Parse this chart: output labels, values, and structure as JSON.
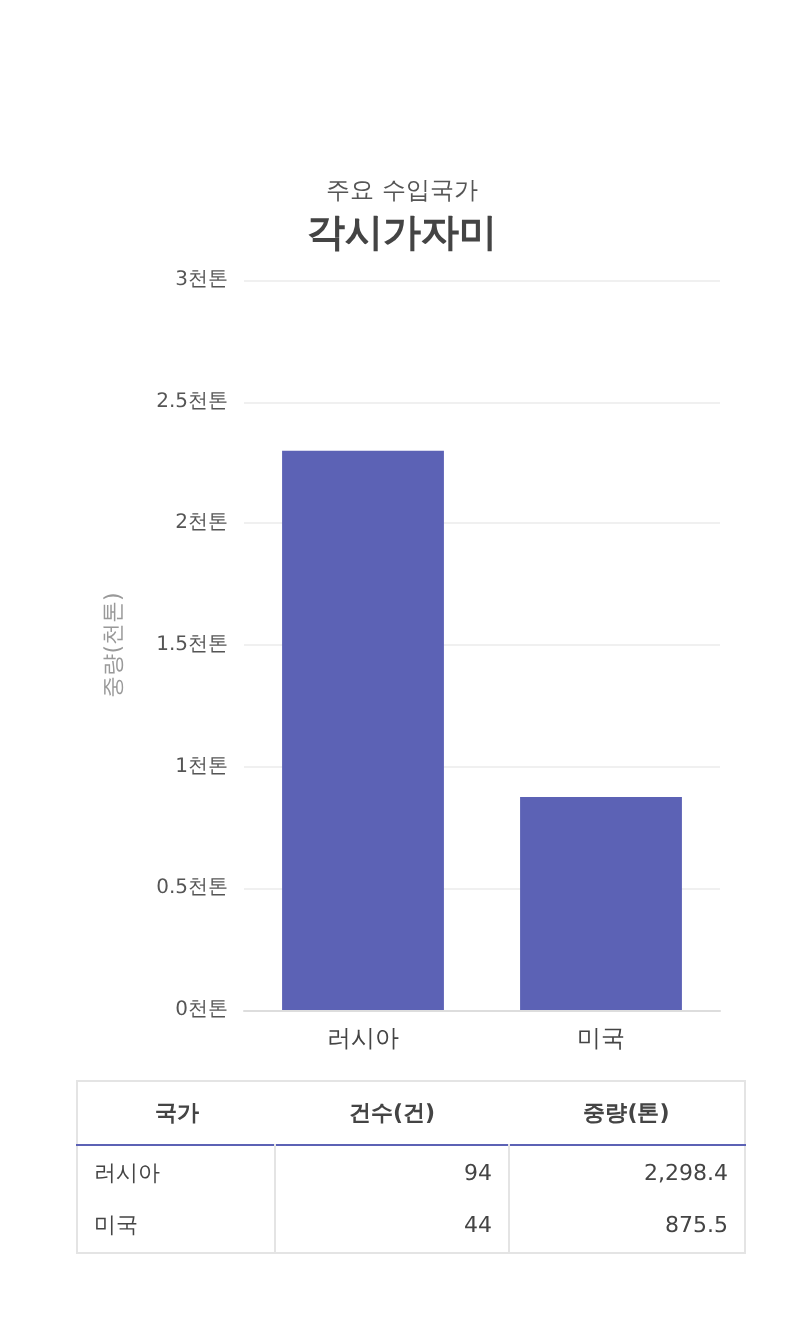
{
  "chart_data": [
    {
      "type": "bar",
      "subtitle": "주요 수입국가",
      "title": "각시가자미",
      "ylabel": "중량(천톤)",
      "categories": [
        "러시아",
        "미국"
      ],
      "values": [
        2.2984,
        0.8755
      ],
      "color": "#5c62b5",
      "ylim": [
        0,
        3
      ],
      "yticks": [
        {
          "value": 0,
          "label": "0천톤"
        },
        {
          "value": 0.5,
          "label": "0.5천톤"
        },
        {
          "value": 1,
          "label": "1천톤"
        },
        {
          "value": 1.5,
          "label": "1.5천톤"
        },
        {
          "value": 2,
          "label": "2천톤"
        },
        {
          "value": 2.5,
          "label": "2.5천톤"
        },
        {
          "value": 3,
          "label": "3천톤"
        }
      ],
      "grid": "y"
    },
    {
      "type": "other",
      "annotations": [
        "국가",
        "건수(건)",
        "중량(톤)",
        "러시아",
        "94",
        "2,298.4",
        "미국",
        "44",
        "875.5"
      ]
    }
  ]
}
